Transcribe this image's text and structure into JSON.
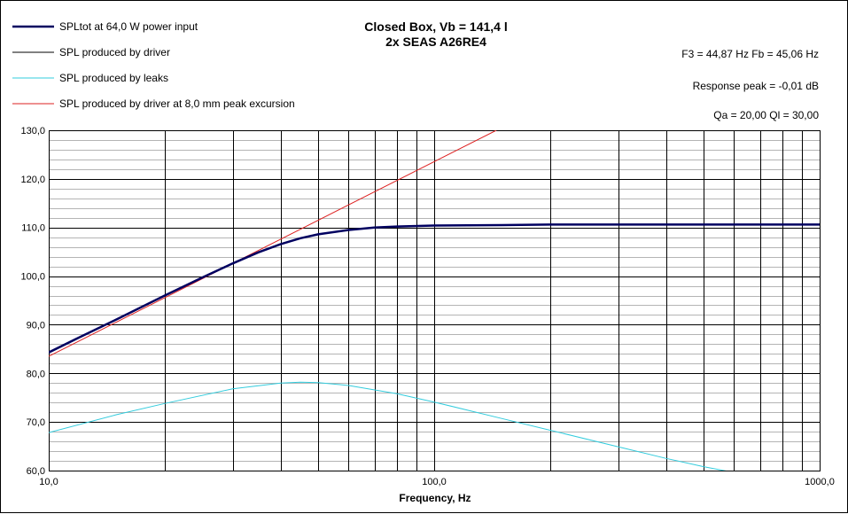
{
  "chart_data": {
    "type": "line",
    "title": "Closed Box, Vb = 141,4 l",
    "subtitle": "2x SEAS A26RE4",
    "xlabel": "Frequency, Hz",
    "ylabel": "",
    "x_scale": "log",
    "xlim": [
      10,
      1000
    ],
    "ylim": [
      60,
      130
    ],
    "x_tick_labels": [
      {
        "value": 10,
        "label": "10,0"
      },
      {
        "value": 100,
        "label": "100,0"
      },
      {
        "value": 1000,
        "label": "1000,0"
      }
    ],
    "y_ticks": [
      {
        "value": 60,
        "label": "60,0"
      },
      {
        "value": 70,
        "label": "70,0"
      },
      {
        "value": 80,
        "label": "80,0"
      },
      {
        "value": 90,
        "label": "90,0"
      },
      {
        "value": 100,
        "label": "100,0"
      },
      {
        "value": 110,
        "label": "110,0"
      },
      {
        "value": 120,
        "label": "120,0"
      },
      {
        "value": 130,
        "label": "130,0"
      }
    ],
    "grid": true,
    "legend_position": "top-left",
    "info_lines": [
      "F3 = 44,87  Hz   Fb = 45,06  Hz",
      "Response peak = -0,01  dB",
      "Qa = 20,00   Ql = 30,00"
    ],
    "series": [
      {
        "name": "SPLtot at 64,0 W power input",
        "color": "#000060",
        "x": [
          10,
          12,
          15,
          20,
          25,
          30,
          35,
          40,
          45,
          50,
          60,
          70,
          80,
          100,
          150,
          200,
          300,
          500,
          700,
          1000
        ],
        "y": [
          84.3,
          87.4,
          91.1,
          96.0,
          99.7,
          102.6,
          104.9,
          106.6,
          107.8,
          108.6,
          109.5,
          110.0,
          110.2,
          110.4,
          110.5,
          110.6,
          110.6,
          110.6,
          110.6,
          110.6
        ]
      },
      {
        "name": "SPL produced by driver",
        "color": "#000000",
        "x": [
          10,
          12,
          15,
          20,
          25,
          30,
          35,
          40,
          45,
          50,
          60,
          70,
          80,
          100,
          150,
          200,
          300,
          500,
          700,
          1000
        ],
        "y": [
          84.3,
          87.4,
          91.1,
          96.0,
          99.7,
          102.6,
          104.9,
          106.6,
          107.8,
          108.6,
          109.5,
          110.0,
          110.2,
          110.4,
          110.5,
          110.6,
          110.6,
          110.6,
          110.6,
          110.6
        ]
      },
      {
        "name": "SPL produced by leaks",
        "color": "#33ccdd",
        "x": [
          10,
          15,
          20,
          30,
          40,
          45,
          50,
          60,
          80,
          100,
          150,
          200,
          300,
          400,
          500,
          600
        ],
        "y": [
          67.8,
          71.5,
          73.8,
          76.8,
          78.0,
          78.2,
          78.1,
          77.5,
          75.8,
          74.1,
          70.7,
          68.3,
          64.9,
          62.5,
          60.8,
          59.6
        ]
      },
      {
        "name": "SPL produced by driver at 8,0 mm peak excursion",
        "color": "#dd2222",
        "x": [
          10,
          145
        ],
        "y": [
          83.5,
          130.0
        ]
      }
    ]
  }
}
